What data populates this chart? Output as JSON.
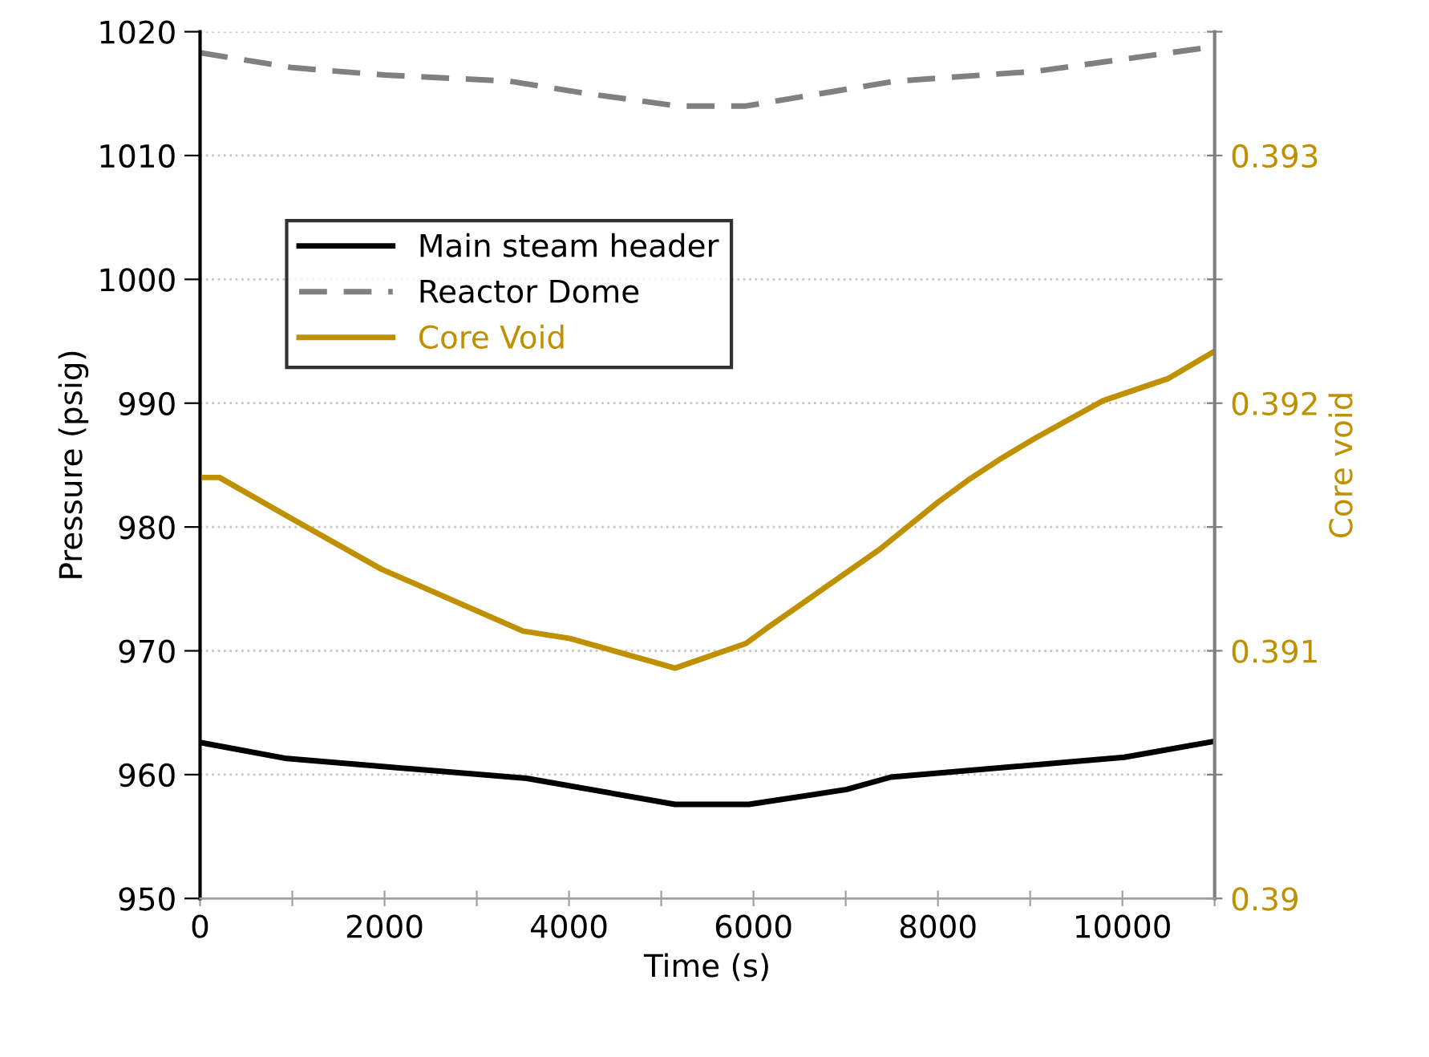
{
  "chart_data": {
    "type": "line",
    "xlabel": "Time (s)",
    "ylabel": "Pressure (psig)",
    "y2label": "Core void",
    "xlim": [
      0,
      11000
    ],
    "xticks": [
      0,
      {
        "value": 1000,
        "label": null
      },
      2000,
      {
        "value": 3000,
        "label": null
      },
      4000,
      {
        "value": 5000,
        "label": null
      },
      6000,
      {
        "value": 7000,
        "label": null
      },
      8000,
      {
        "value": 9000,
        "label": null
      },
      10000,
      {
        "value": 11000,
        "label": null
      }
    ],
    "ylim": [
      950,
      1020
    ],
    "yticks": [
      950,
      960,
      970,
      980,
      990,
      1000,
      1010,
      1020
    ],
    "y2lim": [
      0.39,
      0.3935
    ],
    "y2ticks": [
      0.39,
      {
        "value": 0.3905,
        "label": null
      },
      0.391,
      {
        "value": 0.3915,
        "label": null
      },
      0.392,
      {
        "value": 0.3925,
        "label": null
      },
      0.393,
      {
        "value": 0.3935,
        "label": null
      }
    ],
    "grid": "y",
    "legend": "top left",
    "series": [
      {
        "name": "Main steam header",
        "color": "#000000",
        "line_style": "solid",
        "x": [
          0,
          940,
          3540,
          5150,
          5950,
          7010,
          7490,
          10020,
          11000
        ],
        "values": [
          962.6,
          961.3,
          959.7,
          957.6,
          957.6,
          958.8,
          959.8,
          961.4,
          962.7
        ]
      },
      {
        "name": "Reactor Dome",
        "color": "#808080",
        "line_style": "dashed",
        "x": [
          0,
          1000,
          2000,
          3360,
          4200,
          5180,
          5920,
          7530,
          9060,
          11000
        ],
        "values": [
          1018.3,
          1017.1,
          1016.5,
          1016.0,
          1015.0,
          1014.0,
          1014.0,
          1016.0,
          1016.8,
          1018.8
        ]
      },
      {
        "name": "Core Void",
        "color": "#bf9000",
        "line_style": "solid",
        "axis": "y2",
        "x": [
          50,
          210,
          1010,
          1965,
          3500,
          4010,
          5150,
          5920,
          6140,
          7370,
          8000,
          8330,
          8700,
          9060,
          9790,
          10500,
          11000
        ],
        "values": [
          0.3917,
          0.3917,
          0.39153,
          0.39133,
          0.39108,
          0.39105,
          0.39093,
          0.39103,
          0.39109,
          0.39141,
          0.3916,
          0.39169,
          0.39178,
          0.39186,
          0.39201,
          0.3921,
          0.39221
        ]
      }
    ]
  }
}
